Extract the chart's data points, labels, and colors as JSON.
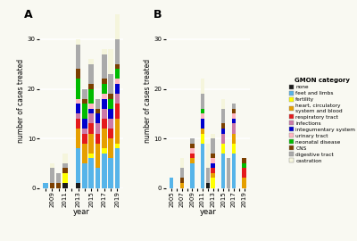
{
  "categories": {
    "none": "#1a1a1a",
    "feet and limbs": "#56b4e9",
    "fertility": "#ffff00",
    "heart, circulatory\nsystem and blood": "#e69f00",
    "respiratory tract": "#e41a1c",
    "infections": "#cc79a7",
    "integumentary system": "#0000cd",
    "urinary tract": "#ffb6c1",
    "neonatal disease": "#00bb00",
    "CNS": "#7b3f00",
    "digestive tract": "#aaaaaa",
    "castration": "#f5f5dc"
  },
  "panel_A": {
    "years": [
      2008,
      2009,
      2010,
      2011,
      2012,
      2013,
      2014,
      2015,
      2016,
      2017,
      2018,
      2019
    ],
    "xtick_labels": [
      "",
      "2009",
      "",
      "2011",
      "",
      "2013",
      "",
      "2015",
      "",
      "2017",
      "",
      "2019"
    ],
    "data": {
      "none": [
        0,
        0,
        0,
        1,
        0,
        1,
        0,
        0,
        0,
        0,
        0,
        0
      ],
      "feet and limbs": [
        1,
        0,
        0,
        0,
        0,
        7,
        5,
        6,
        4,
        7,
        6,
        8
      ],
      "fertility": [
        0,
        0,
        0,
        2,
        0,
        0,
        0,
        1,
        0,
        1,
        0,
        1
      ],
      "heart, circulatory\nsystem and blood": [
        0,
        0,
        0,
        0,
        0,
        4,
        4,
        4,
        5,
        4,
        4,
        5
      ],
      "respiratory tract": [
        0,
        0,
        0,
        0,
        0,
        2,
        2,
        2,
        2,
        2,
        2,
        3
      ],
      "infections": [
        0,
        0,
        0,
        0,
        0,
        1,
        1,
        2,
        2,
        2,
        2,
        2
      ],
      "integumentary system": [
        0,
        0,
        0,
        0,
        0,
        2,
        2,
        1,
        2,
        2,
        2,
        2
      ],
      "urinary tract": [
        0,
        0,
        0,
        0,
        0,
        1,
        0,
        1,
        0,
        1,
        0,
        1
      ],
      "neonatal disease": [
        0,
        0,
        0,
        0,
        0,
        4,
        3,
        3,
        0,
        2,
        2,
        2
      ],
      "CNS": [
        0,
        1,
        1,
        1,
        0,
        2,
        1,
        1,
        1,
        1,
        1,
        1
      ],
      "digestive tract": [
        0,
        3,
        2,
        1,
        0,
        5,
        2,
        4,
        2,
        5,
        4,
        5
      ],
      "castration": [
        0,
        1,
        0,
        2,
        0,
        1,
        0,
        1,
        0,
        1,
        5,
        5
      ]
    }
  },
  "panel_B": {
    "years": [
      2005,
      2006,
      2007,
      2008,
      2009,
      2010,
      2011,
      2012,
      2013,
      2014,
      2015,
      2016,
      2017,
      2018,
      2019
    ],
    "xtick_labels": [
      "2005",
      "",
      "2007",
      "",
      "2009",
      "",
      "2011",
      "",
      "2013",
      "",
      "2015",
      "",
      "2017",
      "",
      "2019"
    ],
    "data": {
      "none": [
        0,
        0,
        0,
        0,
        0,
        0,
        0,
        1,
        0,
        0,
        0,
        0,
        0,
        0,
        0
      ],
      "feet and limbs": [
        2,
        0,
        0,
        0,
        5,
        0,
        9,
        0,
        0,
        0,
        7,
        0,
        7,
        0,
        0
      ],
      "fertility": [
        0,
        0,
        0,
        0,
        0,
        0,
        2,
        0,
        2,
        0,
        2,
        0,
        2,
        0,
        0
      ],
      "heart, circulatory\nsystem and blood": [
        0,
        0,
        1,
        0,
        1,
        0,
        1,
        0,
        1,
        0,
        0,
        0,
        2,
        0,
        2
      ],
      "respiratory tract": [
        0,
        0,
        0,
        0,
        1,
        0,
        0,
        0,
        1,
        0,
        0,
        0,
        0,
        0,
        2
      ],
      "infections": [
        0,
        0,
        0,
        0,
        0,
        0,
        0,
        0,
        0,
        0,
        2,
        0,
        2,
        0,
        0
      ],
      "integumentary system": [
        0,
        0,
        0,
        0,
        0,
        0,
        2,
        0,
        1,
        0,
        1,
        0,
        1,
        0,
        0
      ],
      "urinary tract": [
        0,
        0,
        0,
        0,
        1,
        0,
        1,
        0,
        1,
        0,
        0,
        0,
        1,
        0,
        0
      ],
      "neonatal disease": [
        0,
        0,
        0,
        0,
        0,
        0,
        1,
        0,
        0,
        0,
        0,
        0,
        0,
        0,
        1
      ],
      "CNS": [
        0,
        0,
        1,
        0,
        1,
        0,
        0,
        0,
        1,
        0,
        1,
        0,
        1,
        0,
        1
      ],
      "digestive tract": [
        0,
        0,
        2,
        0,
        1,
        0,
        3,
        3,
        3,
        0,
        3,
        6,
        1,
        0,
        0
      ],
      "castration": [
        0,
        0,
        2,
        0,
        0,
        0,
        3,
        5,
        1,
        0,
        2,
        0,
        0,
        0,
        0
      ]
    }
  },
  "bg_color": "#f9f9f2",
  "grid_color": "#ffffff",
  "ylim": [
    0,
    35
  ],
  "yticks": [
    0,
    10,
    20,
    30
  ]
}
